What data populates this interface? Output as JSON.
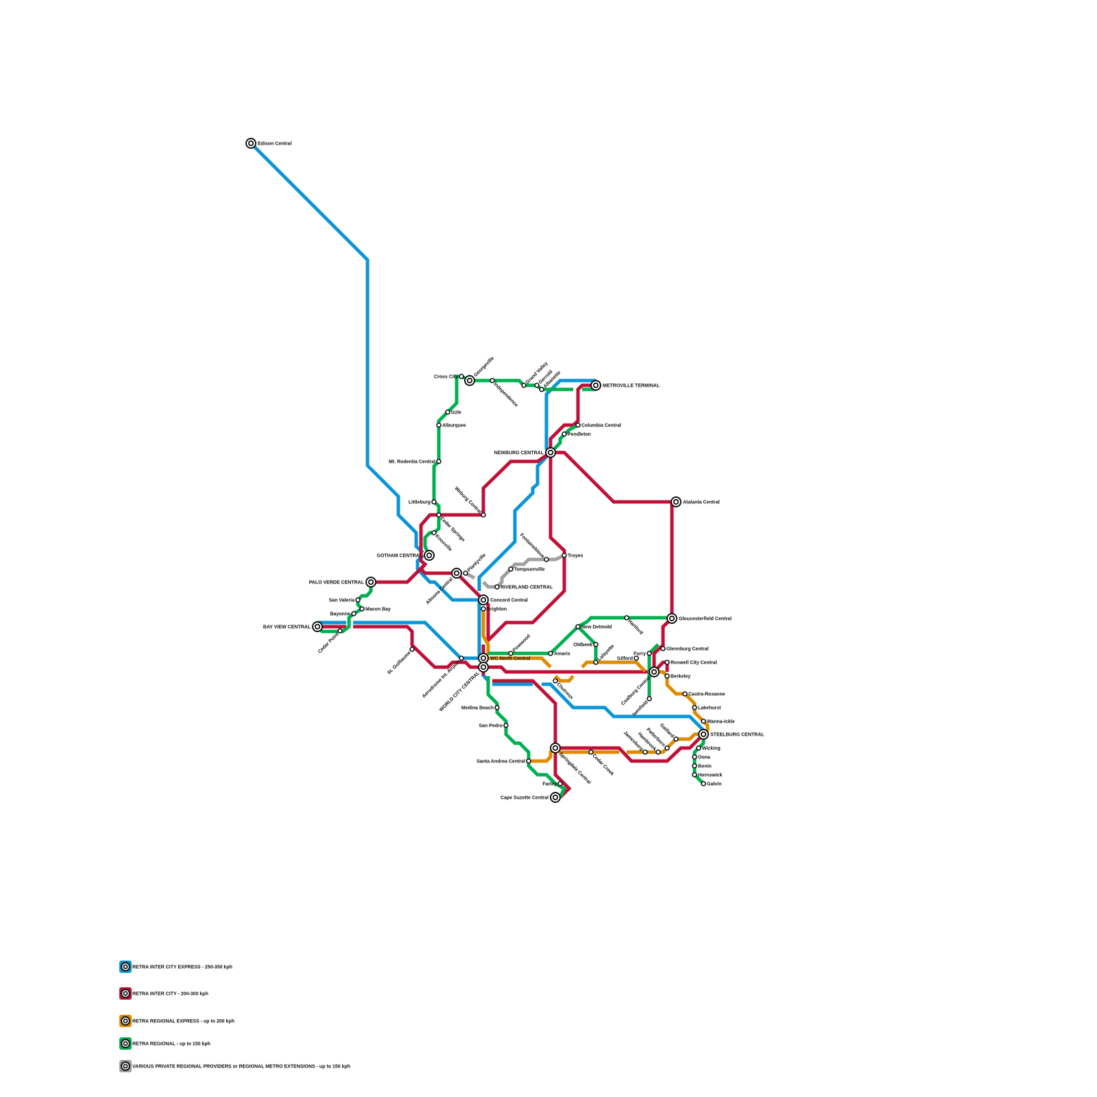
{
  "lines": [
    {
      "id": "express",
      "name": "RETRA INTER CITY EXPRESS - 250-350 kph",
      "color": "#0a96d6"
    },
    {
      "id": "intercity",
      "name": "RETRA INTER CITY - 200-300 kph",
      "color": "#c01038"
    },
    {
      "id": "regexpress",
      "name": "RETRA REGIONAL EXPRESS - up to 200 kph",
      "color": "#e08a00"
    },
    {
      "id": "regional",
      "name": "RETRA REGIONAL - up to 150 kph",
      "color": "#00b050"
    },
    {
      "id": "private",
      "name": "VARIOUS PRIVATE REGIONAL PROVIDERS or REGIONAL METRO EXTENSIONS - up to 150 kph",
      "color": "#a0a0a0"
    }
  ],
  "stations": [
    {
      "name": "Edison Central",
      "type": "interchange"
    },
    {
      "name": "Georgeville",
      "type": "interchange"
    },
    {
      "name": "METROVILLE TERMINAL",
      "type": "interchange"
    },
    {
      "name": "NEWBURG CENTRAL",
      "type": "interchange"
    },
    {
      "name": "Atalanta Central",
      "type": "interchange"
    },
    {
      "name": "GOTHAM CENTRAL",
      "type": "interchange"
    },
    {
      "name": "Altoona Central",
      "type": "interchange"
    },
    {
      "name": "PALO VERDE CENTRAL",
      "type": "interchange"
    },
    {
      "name": "Concord Central",
      "type": "interchange"
    },
    {
      "name": "BAY VIEW CENTRAL",
      "type": "interchange"
    },
    {
      "name": "Gloucesterfield Central",
      "type": "interchange"
    },
    {
      "name": "WC North Central",
      "type": "interchange"
    },
    {
      "name": "WORLD CITY CENTRAL",
      "type": "interchange"
    },
    {
      "name": "Coalburg Central",
      "type": "interchange"
    },
    {
      "name": "STEELBURG CENTRAL",
      "type": "interchange"
    },
    {
      "name": "Springdale Central",
      "type": "interchange"
    },
    {
      "name": "Cape Suzette Central",
      "type": "interchange"
    },
    {
      "name": "Cross City",
      "type": "stop"
    },
    {
      "name": "Independence",
      "type": "stop"
    },
    {
      "name": "Grand Valley",
      "type": "stop"
    },
    {
      "name": "Gerrold",
      "type": "stop"
    },
    {
      "name": "Albanette",
      "type": "stop"
    },
    {
      "name": "Izzle",
      "type": "stop"
    },
    {
      "name": "Alburquee",
      "type": "stop"
    },
    {
      "name": "Mt. Rodentia Central",
      "type": "stop"
    },
    {
      "name": "Columbia Central",
      "type": "stop"
    },
    {
      "name": "Pendleton",
      "type": "stop"
    },
    {
      "name": "Littleburg",
      "type": "stop"
    },
    {
      "name": "Weburg Central",
      "type": "stop"
    },
    {
      "name": "Cedar Springs",
      "type": "stop"
    },
    {
      "name": "Knoxville",
      "type": "stop"
    },
    {
      "name": "Fontainebleue",
      "type": "stop"
    },
    {
      "name": "Troyes",
      "type": "stop"
    },
    {
      "name": "Plantyville",
      "type": "stop"
    },
    {
      "name": "Tompsonville",
      "type": "stop"
    },
    {
      "name": "RIVERLAND CENTRAL",
      "type": "stop"
    },
    {
      "name": "San Valeria",
      "type": "stop"
    },
    {
      "name": "Macon Bay",
      "type": "stop"
    },
    {
      "name": "Brighton",
      "type": "stop"
    },
    {
      "name": "Bayonne",
      "type": "stop"
    },
    {
      "name": "Cedar Point",
      "type": "stop"
    },
    {
      "name": "St. Guillaume",
      "type": "stop"
    },
    {
      "name": "Aerodrome Int. Airport",
      "type": "stop"
    },
    {
      "name": "Pinewood",
      "type": "stop"
    },
    {
      "name": "Amaris",
      "type": "stop"
    },
    {
      "name": "New Detmold",
      "type": "stop"
    },
    {
      "name": "Hartford",
      "type": "stop"
    },
    {
      "name": "Oldbeek",
      "type": "stop"
    },
    {
      "name": "Lafayette",
      "type": "stop"
    },
    {
      "name": "Gilford",
      "type": "stop"
    },
    {
      "name": "Furry",
      "type": "stop"
    },
    {
      "name": "Glennburg Central",
      "type": "stop"
    },
    {
      "name": "Roswell City Central",
      "type": "stop"
    },
    {
      "name": "Berkeley",
      "type": "stop"
    },
    {
      "name": "Chutreux",
      "type": "stop"
    },
    {
      "name": "Iaenfield",
      "type": "stop"
    },
    {
      "name": "Castra-Roxanne",
      "type": "stop"
    },
    {
      "name": "Lakehurst",
      "type": "stop"
    },
    {
      "name": "Wanna-Ickle",
      "type": "stop"
    },
    {
      "name": "Medina Beach",
      "type": "stop"
    },
    {
      "name": "San Pedro",
      "type": "stop"
    },
    {
      "name": "Gaillard",
      "type": "stop"
    },
    {
      "name": "Patterborn",
      "type": "stop"
    },
    {
      "name": "Hambrook",
      "type": "stop"
    },
    {
      "name": "Jamesburg",
      "type": "stop"
    },
    {
      "name": "Cedar Creek",
      "type": "stop"
    },
    {
      "name": "Wicking",
      "type": "stop"
    },
    {
      "name": "Oona",
      "type": "stop"
    },
    {
      "name": "Bonin",
      "type": "stop"
    },
    {
      "name": "Hornswick",
      "type": "stop"
    },
    {
      "name": "Galvin",
      "type": "stop"
    },
    {
      "name": "Santa Andrea Central",
      "type": "stop"
    },
    {
      "name": "Farley",
      "type": "stop"
    }
  ]
}
